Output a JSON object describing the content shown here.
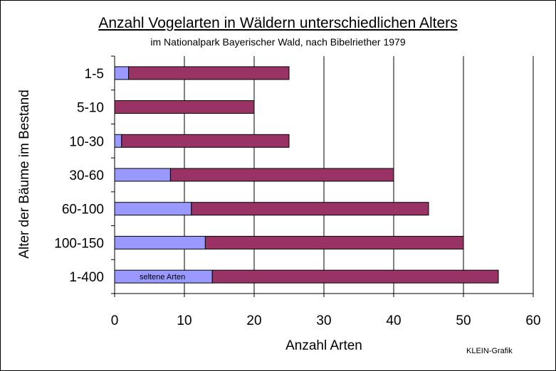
{
  "chart_data": {
    "type": "bar",
    "orientation": "horizontal",
    "stacked": true,
    "title": "Anzahl Vogelarten in Wäldern unterschiedlichen Alters",
    "subtitle": "im Nationalpark Bayerischer Wald, nach Bibelriether 1979",
    "xlabel": "Anzahl Arten",
    "ylabel": "Alter der Bäume im Bestand",
    "xlim": [
      0,
      60
    ],
    "xticks": [
      "0",
      "10",
      "20",
      "30",
      "40",
      "50",
      "60"
    ],
    "grid": "vertical",
    "categories": [
      "1-5",
      "5-10",
      "10-30",
      "30-60",
      "60-100",
      "100-150",
      "1-400"
    ],
    "series": [
      {
        "name": "seltene Arten",
        "color": "#9999ff",
        "values": [
          2,
          0,
          1,
          8,
          11,
          13,
          14
        ]
      },
      {
        "color": "#993366",
        "values": [
          23,
          20,
          24,
          32,
          34,
          37,
          41
        ]
      }
    ],
    "totals": [
      25,
      20,
      25,
      40,
      45,
      50,
      55
    ],
    "annotations": [
      "seltene Arten"
    ]
  },
  "credit": "KLEIN-Grafik"
}
